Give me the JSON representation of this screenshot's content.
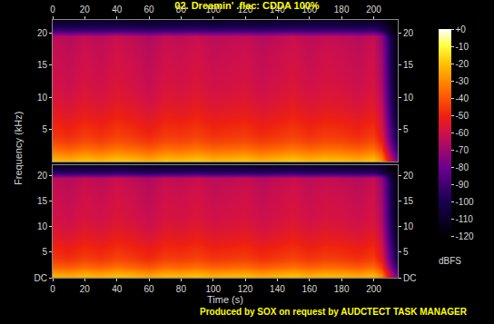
{
  "chart_data": {
    "type": "heatmap",
    "title": "02. Dreamin' .flac: CDDA 100%",
    "x_label": "Time (s)",
    "y_label": "Frequency (kHz)",
    "annotations": [
      "Produced by SOX on request by AUDCTECT TASK MANAGER"
    ],
    "x": [
      0,
      10,
      20,
      30,
      40,
      50,
      60,
      70,
      80,
      90,
      100,
      110,
      120,
      130,
      140,
      150,
      160,
      170,
      180,
      190,
      200,
      205,
      210,
      215
    ],
    "y": [
      0,
      1,
      2,
      3,
      4,
      6,
      8,
      10,
      12,
      14,
      16,
      18,
      19.5,
      20.5,
      21.5,
      22
    ],
    "xlim": [
      0,
      215
    ],
    "xticks": [
      0,
      20,
      40,
      60,
      80,
      100,
      120,
      140,
      160,
      180,
      200
    ],
    "ylim": [
      0,
      22.05
    ],
    "colorbar": {
      "range": [
        -120,
        0
      ],
      "ticks": [
        {
          "value": 0,
          "label": "+0"
        },
        -10,
        -20,
        -30,
        -40,
        -50,
        -60,
        -70,
        -80,
        -90,
        -100,
        -110,
        -120
      ],
      "label": "dBFS"
    },
    "series": [
      {
        "yticks": [
          5,
          10,
          15,
          20
        ],
        "z": [
          [
            -20,
            -22,
            -19,
            -21,
            -18,
            -20,
            -23,
            -19,
            -20,
            -18,
            -21,
            -20,
            -19,
            -22,
            -20,
            -18,
            -21,
            -19,
            -20,
            -22,
            -19,
            -28,
            -55,
            -80
          ],
          [
            -28,
            -30,
            -27,
            -29,
            -26,
            -28,
            -31,
            -27,
            -28,
            -26,
            -29,
            -28,
            -27,
            -30,
            -28,
            -26,
            -29,
            -27,
            -28,
            -30,
            -27,
            -36,
            -63,
            -88
          ],
          [
            -36,
            -38,
            -35,
            -37,
            -34,
            -36,
            -39,
            -35,
            -36,
            -34,
            -37,
            -36,
            -35,
            -38,
            -36,
            -34,
            -37,
            -35,
            -36,
            -38,
            -35,
            -44,
            -71,
            -96
          ],
          [
            -42,
            -44,
            -41,
            -43,
            -40,
            -42,
            -45,
            -41,
            -42,
            -40,
            -43,
            -42,
            -41,
            -44,
            -42,
            -40,
            -43,
            -41,
            -42,
            -44,
            -41,
            -50,
            -77,
            -102
          ],
          [
            -46,
            -48,
            -45,
            -47,
            -44,
            -46,
            -49,
            -45,
            -46,
            -44,
            -47,
            -46,
            -45,
            -48,
            -46,
            -44,
            -47,
            -45,
            -46,
            -48,
            -45,
            -54,
            -81,
            -106
          ],
          [
            -50,
            -52,
            -49,
            -51,
            -48,
            -50,
            -53,
            -49,
            -50,
            -48,
            -51,
            -50,
            -49,
            -52,
            -50,
            -48,
            -51,
            -49,
            -50,
            -52,
            -49,
            -58,
            -85,
            -110
          ],
          [
            -54,
            -56,
            -53,
            -55,
            -52,
            -54,
            -57,
            -53,
            -54,
            -52,
            -55,
            -54,
            -53,
            -56,
            -54,
            -52,
            -55,
            -53,
            -54,
            -56,
            -53,
            -62,
            -89,
            -114
          ],
          [
            -57,
            -59,
            -56,
            -58,
            -55,
            -57,
            -60,
            -56,
            -57,
            -55,
            -58,
            -57,
            -56,
            -59,
            -57,
            -55,
            -58,
            -56,
            -57,
            -59,
            -56,
            -65,
            -92,
            -117
          ],
          [
            -59,
            -61,
            -58,
            -60,
            -57,
            -59,
            -62,
            -58,
            -59,
            -57,
            -60,
            -59,
            -58,
            -61,
            -59,
            -57,
            -60,
            -58,
            -59,
            -61,
            -58,
            -67,
            -94,
            -119
          ],
          [
            -60,
            -62,
            -59,
            -61,
            -58,
            -60,
            -63,
            -59,
            -60,
            -58,
            -61,
            -60,
            -59,
            -62,
            -60,
            -58,
            -61,
            -59,
            -60,
            -62,
            -59,
            -68,
            -95,
            -120
          ],
          [
            -61,
            -63,
            -60,
            -62,
            -59,
            -61,
            -64,
            -60,
            -61,
            -59,
            -62,
            -61,
            -60,
            -63,
            -61,
            -59,
            -62,
            -60,
            -61,
            -63,
            -60,
            -69,
            -96,
            -120
          ],
          [
            -62,
            -64,
            -61,
            -63,
            -60,
            -62,
            -65,
            -61,
            -62,
            -60,
            -63,
            -62,
            -61,
            -64,
            -62,
            -60,
            -63,
            -61,
            -62,
            -64,
            -61,
            -70,
            -97,
            -120
          ],
          [
            -64,
            -66,
            -63,
            -65,
            -62,
            -64,
            -67,
            -63,
            -64,
            -62,
            -65,
            -64,
            -63,
            -66,
            -64,
            -62,
            -65,
            -63,
            -64,
            -66,
            -63,
            -72,
            -99,
            -120
          ],
          [
            -92,
            -93,
            -92,
            -93,
            -91,
            -92,
            -94,
            -92,
            -92,
            -91,
            -93,
            -92,
            -92,
            -93,
            -92,
            -91,
            -93,
            -92,
            -92,
            -93,
            -92,
            -98,
            -110,
            -120
          ],
          [
            -105,
            -106,
            -105,
            -105,
            -104,
            -105,
            -106,
            -105,
            -105,
            -104,
            -106,
            -105,
            -105,
            -106,
            -105,
            -104,
            -105,
            -105,
            -105,
            -106,
            -105,
            -108,
            -115,
            -120
          ],
          [
            -110,
            -111,
            -110,
            -110,
            -109,
            -110,
            -111,
            -110,
            -110,
            -109,
            -111,
            -110,
            -110,
            -111,
            -110,
            -109,
            -110,
            -110,
            -110,
            -111,
            -110,
            -112,
            -118,
            -120
          ]
        ]
      },
      {
        "yticks": [
          {
            "value": 0,
            "label": "DC"
          },
          5,
          10,
          15,
          20
        ],
        "z": [
          [
            -20,
            -22,
            -19,
            -21,
            -18,
            -20,
            -23,
            -19,
            -20,
            -18,
            -21,
            -20,
            -19,
            -22,
            -20,
            -18,
            -21,
            -19,
            -20,
            -22,
            -19,
            -28,
            -55,
            -80
          ],
          [
            -28,
            -30,
            -27,
            -29,
            -26,
            -28,
            -31,
            -27,
            -28,
            -26,
            -29,
            -28,
            -27,
            -30,
            -28,
            -26,
            -29,
            -27,
            -28,
            -30,
            -27,
            -36,
            -63,
            -88
          ],
          [
            -36,
            -38,
            -35,
            -37,
            -34,
            -36,
            -39,
            -35,
            -36,
            -34,
            -37,
            -36,
            -35,
            -38,
            -36,
            -34,
            -37,
            -35,
            -36,
            -38,
            -35,
            -44,
            -71,
            -96
          ],
          [
            -42,
            -44,
            -41,
            -43,
            -40,
            -42,
            -45,
            -41,
            -42,
            -40,
            -43,
            -42,
            -41,
            -44,
            -42,
            -40,
            -43,
            -41,
            -42,
            -44,
            -41,
            -50,
            -77,
            -102
          ],
          [
            -46,
            -48,
            -45,
            -47,
            -44,
            -46,
            -49,
            -45,
            -46,
            -44,
            -47,
            -46,
            -45,
            -48,
            -46,
            -44,
            -47,
            -45,
            -46,
            -48,
            -45,
            -54,
            -81,
            -106
          ],
          [
            -50,
            -52,
            -49,
            -51,
            -48,
            -50,
            -53,
            -49,
            -50,
            -48,
            -51,
            -50,
            -49,
            -52,
            -50,
            -48,
            -51,
            -49,
            -50,
            -52,
            -49,
            -58,
            -85,
            -110
          ],
          [
            -54,
            -56,
            -53,
            -55,
            -52,
            -54,
            -57,
            -53,
            -54,
            -52,
            -55,
            -54,
            -53,
            -56,
            -54,
            -52,
            -55,
            -53,
            -54,
            -56,
            -53,
            -62,
            -89,
            -114
          ],
          [
            -57,
            -59,
            -56,
            -58,
            -55,
            -57,
            -60,
            -56,
            -57,
            -55,
            -58,
            -57,
            -56,
            -59,
            -57,
            -55,
            -58,
            -56,
            -57,
            -59,
            -56,
            -65,
            -92,
            -117
          ],
          [
            -59,
            -61,
            -58,
            -60,
            -57,
            -59,
            -62,
            -58,
            -59,
            -57,
            -60,
            -59,
            -58,
            -61,
            -59,
            -57,
            -60,
            -58,
            -59,
            -61,
            -58,
            -67,
            -94,
            -119
          ],
          [
            -60,
            -62,
            -59,
            -61,
            -58,
            -60,
            -63,
            -59,
            -60,
            -58,
            -61,
            -60,
            -59,
            -62,
            -60,
            -58,
            -61,
            -59,
            -60,
            -62,
            -59,
            -68,
            -95,
            -120
          ],
          [
            -61,
            -63,
            -60,
            -62,
            -59,
            -61,
            -64,
            -60,
            -61,
            -59,
            -62,
            -61,
            -60,
            -63,
            -61,
            -59,
            -62,
            -60,
            -61,
            -63,
            -60,
            -69,
            -96,
            -120
          ],
          [
            -62,
            -64,
            -61,
            -63,
            -60,
            -62,
            -65,
            -61,
            -62,
            -60,
            -63,
            -62,
            -61,
            -64,
            -62,
            -60,
            -63,
            -61,
            -62,
            -64,
            -61,
            -70,
            -97,
            -120
          ],
          [
            -64,
            -66,
            -63,
            -65,
            -62,
            -64,
            -67,
            -63,
            -64,
            -62,
            -65,
            -64,
            -63,
            -66,
            -64,
            -62,
            -65,
            -63,
            -64,
            -66,
            -63,
            -72,
            -99,
            -120
          ],
          [
            -92,
            -93,
            -92,
            -93,
            -91,
            -92,
            -94,
            -92,
            -92,
            -91,
            -93,
            -92,
            -92,
            -93,
            -92,
            -91,
            -93,
            -92,
            -92,
            -93,
            -92,
            -98,
            -110,
            -120
          ],
          [
            -105,
            -106,
            -105,
            -105,
            -104,
            -105,
            -106,
            -105,
            -105,
            -104,
            -106,
            -105,
            -105,
            -106,
            -105,
            -104,
            -105,
            -105,
            -105,
            -106,
            -105,
            -108,
            -115,
            -120
          ],
          [
            -110,
            -111,
            -110,
            -110,
            -109,
            -110,
            -111,
            -110,
            -110,
            -109,
            -111,
            -110,
            -110,
            -111,
            -110,
            -109,
            -110,
            -110,
            -110,
            -111,
            -110,
            -112,
            -118,
            -120
          ]
        ]
      }
    ]
  }
}
